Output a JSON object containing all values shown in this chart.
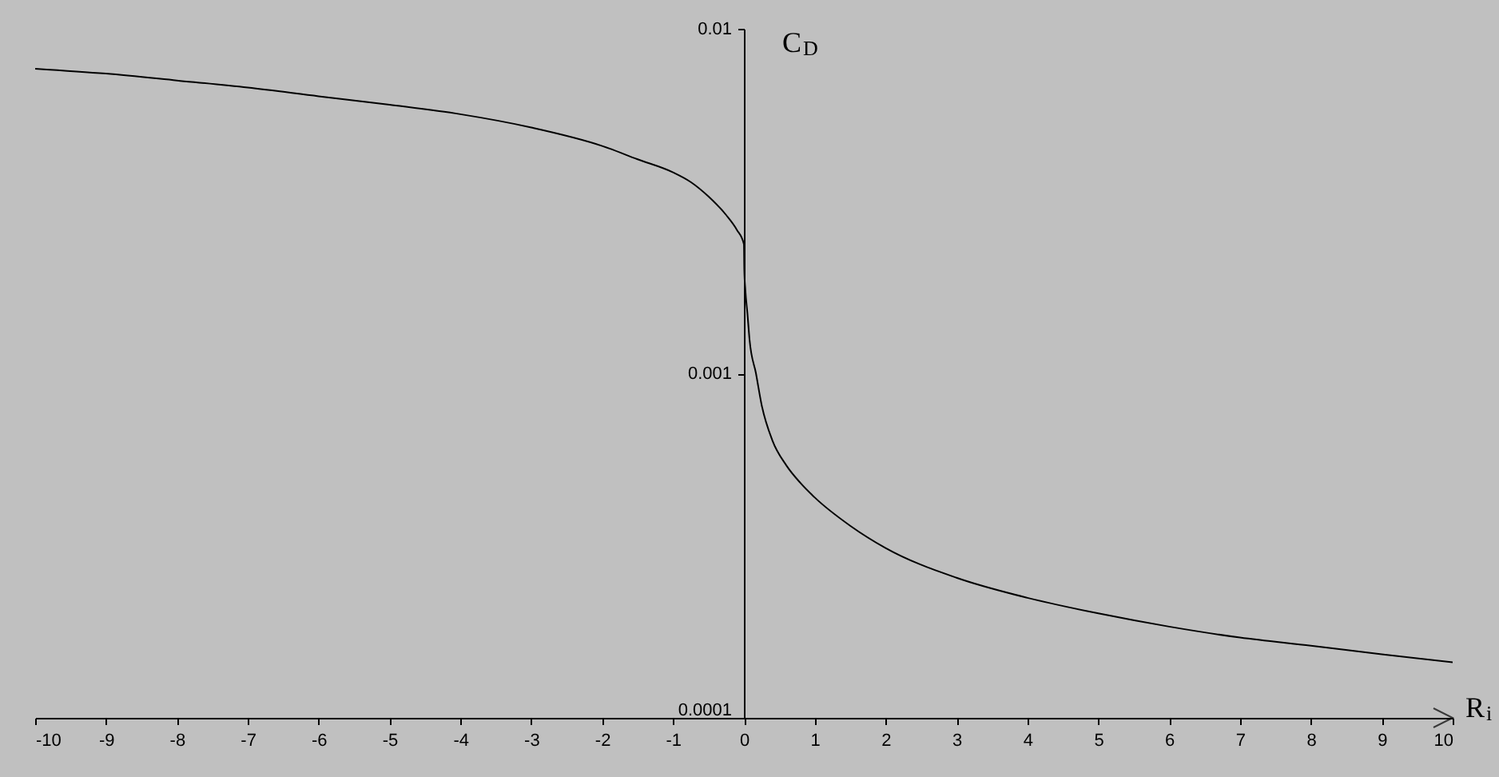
{
  "chart_data": {
    "type": "line",
    "xlabel": "R$_{i}$",
    "ylabel": "C$_{D}$",
    "log": "y",
    "line_style": "solid",
    "xlim": [
      -10,
      10
    ],
    "xticks": [
      -10,
      -9,
      -8,
      -7,
      -6,
      -5,
      -4,
      -3,
      -2,
      -1,
      0,
      1,
      2,
      3,
      4,
      5,
      6,
      7,
      8,
      9,
      10
    ],
    "ylim": [
      0.0001,
      0.01
    ],
    "yticks": [
      0.0001,
      0.001,
      0.01
    ],
    "series": [
      {
        "color": "#000000",
        "x": [
          -10,
          -9,
          -8,
          -7,
          -6,
          -5,
          -4,
          -3,
          -2,
          -1.5,
          -1,
          -0.75,
          -0.5,
          -0.25,
          -0.1,
          0,
          0.005,
          0.02,
          0.05,
          0.08,
          0.17,
          0.25,
          0.4,
          0.6,
          0.8,
          1,
          1.5,
          2,
          3,
          4,
          5,
          6,
          7,
          8,
          9,
          10
        ],
        "values": [
          0.00766,
          0.00741,
          0.00708,
          0.00675,
          0.00637,
          0.00602,
          0.00565,
          0.00517,
          0.00457,
          0.00418,
          0.00383,
          0.00359,
          0.00326,
          0.00288,
          0.00261,
          0.00237,
          0.002,
          0.00175,
          0.00149,
          0.00125,
          0.001,
          0.00081,
          0.00064,
          0.00054,
          0.00048,
          0.000436,
          0.000361,
          0.000311,
          0.000255,
          0.000223,
          0.000201,
          0.000184,
          0.000171,
          0.000162,
          0.000153,
          0.000145
        ]
      }
    ]
  }
}
